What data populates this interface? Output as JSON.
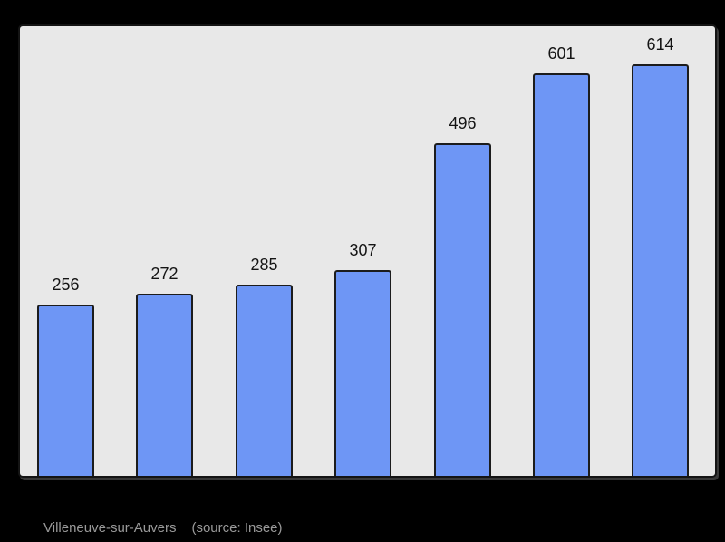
{
  "chart_data": {
    "type": "bar",
    "values": [
      256,
      272,
      285,
      307,
      496,
      601,
      614
    ],
    "labels": [
      "256",
      "272",
      "285",
      "307",
      "496",
      "601",
      "614"
    ],
    "categories": [
      "",
      "",
      "",
      "",
      "",
      "",
      ""
    ],
    "title": "",
    "xlabel": "",
    "ylabel": "",
    "ylim": [
      0,
      671
    ],
    "grid": false,
    "legend": false,
    "bar_color": "#6e96f5",
    "bar_border_color": "#1c1c1c",
    "plot_background": "#e8e8e8",
    "page_background": "#000000",
    "label_color": "#141414"
  },
  "caption": {
    "place": "Villeneuve-sur-Auvers",
    "source": "(source: Insee)",
    "color": "#999999"
  }
}
